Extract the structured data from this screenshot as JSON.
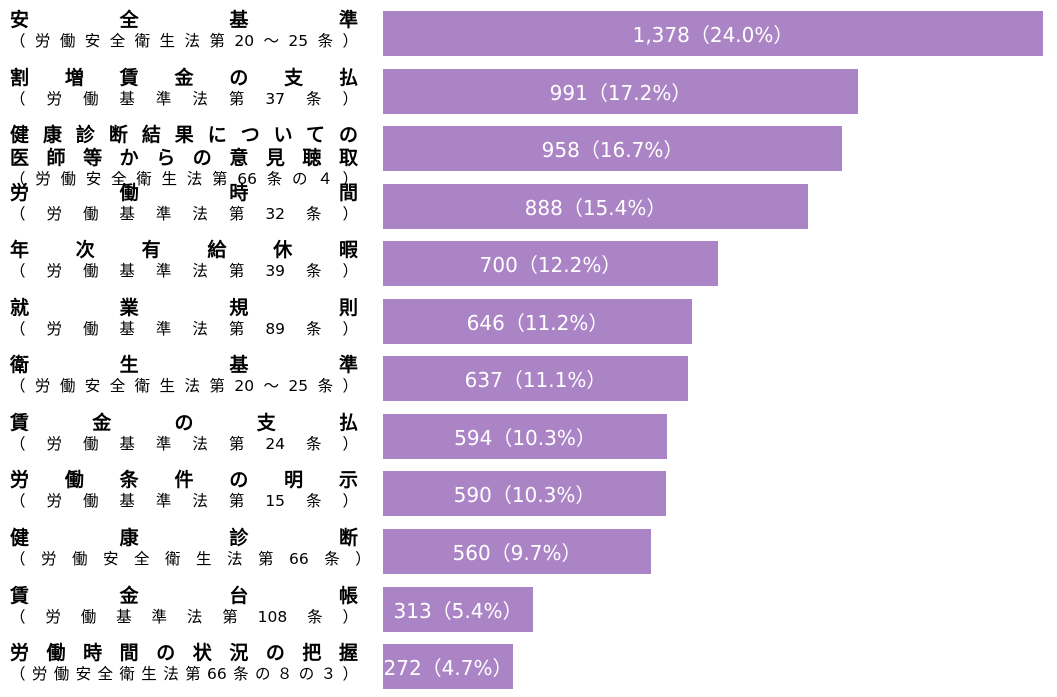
{
  "chart_data": {
    "type": "bar",
    "orientation": "horizontal",
    "bar_color": "#AB84C6",
    "label_color": "#FFFFFF",
    "categories": [
      {
        "title": [
          "安　全　基　準"
        ],
        "sub": "（労働安全衛生法第20～25条）"
      },
      {
        "title": [
          "割　増　賃　金　の　支　払"
        ],
        "sub": "（　労　働　基　準　法　第　37　条　）"
      },
      {
        "title": [
          "健康診断結果についての",
          "医師等からの意見聴取"
        ],
        "sub": "（労働安全衛生法第66条の４）"
      },
      {
        "title": [
          "労　働　時　間"
        ],
        "sub": "（　労　働　基　準　法　第　32　条　）"
      },
      {
        "title": [
          "年　次　有　給　休　暇"
        ],
        "sub": "（　労　働　基　準　法　第　39　条　）"
      },
      {
        "title": [
          "就　業　規　則"
        ],
        "sub": "（　労　働　基　準　法　第　89　条　）"
      },
      {
        "title": [
          "衛　生　基　準"
        ],
        "sub": "（労働安全衛生法第20～25条）"
      },
      {
        "title": [
          "賃　金　の　支　払"
        ],
        "sub": "（　労　働　基　準　法　第　24　条　）"
      },
      {
        "title": [
          "労　働　条　件　の　明　示"
        ],
        "sub": "（　労　働　基　準　法　第　15　条　）"
      },
      {
        "title": [
          "健　康　診　断"
        ],
        "sub": "（　労　働　安　全　衛　生　法　第　66　条　）"
      },
      {
        "title": [
          "賃　金　台　帳"
        ],
        "sub": "（　労　働　基　準　法　第　108　条　）"
      },
      {
        "title": [
          "労働時間の状況の把握"
        ],
        "sub": "（労働安全衛生法第66条の８の３）"
      }
    ],
    "values": [
      1378,
      991,
      958,
      888,
      700,
      646,
      637,
      594,
      590,
      560,
      313,
      272
    ],
    "data_labels": [
      "1,378（24.0%）",
      "991（17.2%）",
      "958（16.7%）",
      "888（15.4%）",
      "700（12.2%）",
      "646（11.2%）",
      "637（11.1%）",
      "594（10.3%）",
      "590（10.3%）",
      "560（9.7%）",
      "313（5.4%）",
      "272（4.7%）"
    ],
    "xlim": [
      0,
      1378
    ]
  }
}
